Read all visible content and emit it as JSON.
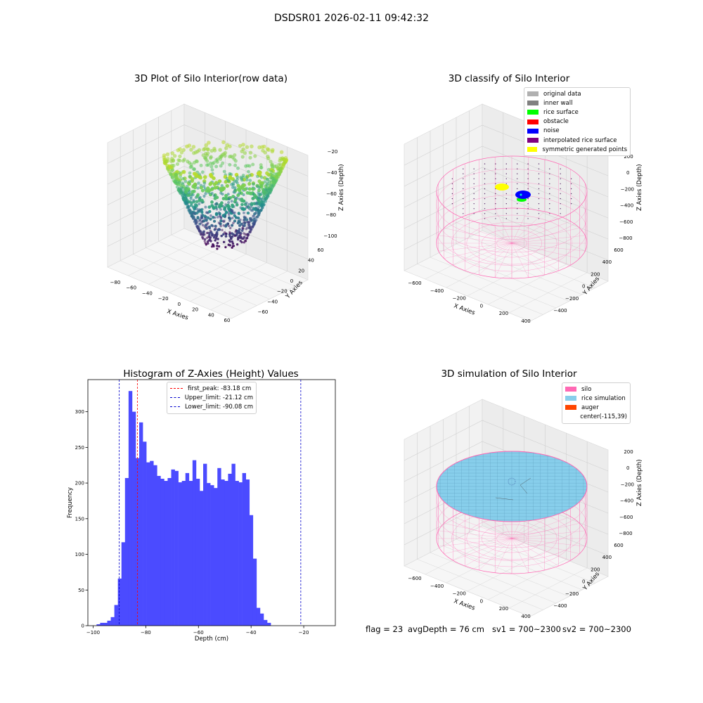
{
  "figure": {
    "suptitle": "DSDSR01 2026-02-11 09:42:32"
  },
  "plot_raw": {
    "title": "3D Plot of Silo Interior(row data)",
    "xlabel": "X Axies",
    "ylabel": "Y Axies",
    "zlabel": "Z Axies (Depth)",
    "xticks": [
      "−80",
      "−60",
      "−40",
      "−20",
      "0",
      "20",
      "40",
      "60"
    ],
    "yticks": [
      "60",
      "40",
      "20",
      "0",
      "−20",
      "−40",
      "−60"
    ],
    "zticks": [
      "−20",
      "−40",
      "−60",
      "−80",
      "−100"
    ]
  },
  "plot_classify": {
    "title": "3D classify of Silo Interior",
    "xlabel": "X Axies",
    "ylabel": "Y Axies",
    "zlabel": "Z Axies (Depth)",
    "xticks": [
      "−600",
      "−400",
      "−200",
      "0",
      "200",
      "400"
    ],
    "yticks": [
      "600",
      "400",
      "200",
      "0",
      "−200",
      "−400"
    ],
    "zticks": [
      "200",
      "0",
      "−200",
      "−400",
      "−600",
      "−800"
    ],
    "legend": [
      {
        "label": "original data",
        "color": "#b0b0b0"
      },
      {
        "label": "inner wall",
        "color": "#808080"
      },
      {
        "label": "rice surface",
        "color": "#00ff00"
      },
      {
        "label": "obstacle",
        "color": "#ff0000"
      },
      {
        "label": "noise",
        "color": "#0000ff"
      },
      {
        "label": "interpolated rice surface",
        "color": "#800080"
      },
      {
        "label": "symmetric generated points",
        "color": "#ffff00"
      }
    ]
  },
  "plot_sim": {
    "title": "3D simulation of Silo Interior",
    "xlabel": "X Axies",
    "ylabel": "Y Axies",
    "zlabel": "Z Axies (Depth)",
    "xticks": [
      "−600",
      "−400",
      "−200",
      "0",
      "200",
      "400"
    ],
    "yticks": [
      "600",
      "400",
      "200",
      "0",
      "−200",
      "−400"
    ],
    "zticks": [
      "200",
      "0",
      "−200",
      "−400",
      "−600",
      "−800"
    ],
    "legend": [
      {
        "label": "silo",
        "color": "#ff69b4"
      },
      {
        "label": "rice simulation",
        "color": "#87ceeb"
      },
      {
        "label": "auger",
        "color": "#ff4500"
      },
      {
        "label": "center(-115,39)",
        "color": ""
      }
    ]
  },
  "chart_data": {
    "type": "bar",
    "title": "Histogram of Z-Axies (Height) Values",
    "xlabel": "Depth (cm)",
    "ylabel": "Frequency",
    "xlim": [
      -102,
      -8
    ],
    "ylim": [
      0,
      345
    ],
    "bin_width": 1.35,
    "bin_start": -98.7,
    "values": [
      2,
      4,
      4,
      7,
      12,
      29,
      66,
      117,
      207,
      329,
      300,
      235,
      285,
      258,
      229,
      231,
      225,
      210,
      206,
      203,
      207,
      219,
      217,
      201,
      203,
      214,
      203,
      232,
      206,
      189,
      227,
      200,
      197,
      193,
      221,
      205,
      203,
      213,
      227,
      203,
      201,
      214,
      205,
      155,
      94,
      25,
      17,
      8,
      4
    ],
    "xticks": [
      -100,
      -80,
      -60,
      -40,
      -20
    ],
    "xtick_labels": [
      "−100",
      "−80",
      "−60",
      "−40",
      "−20"
    ],
    "yticks": [
      0,
      50,
      100,
      150,
      200,
      250,
      300
    ],
    "ytick_labels": [
      "0",
      "50",
      "100",
      "150",
      "200",
      "250",
      "300"
    ],
    "vlines": [
      {
        "x": -83.18,
        "color": "#ff0000",
        "label": "first_peak: -83.18 cm"
      },
      {
        "x": -21.12,
        "color": "#0000cc",
        "label": "Upper_limit: -21.12 cm"
      },
      {
        "x": -90.08,
        "color": "#0000cc",
        "label": "Lower_limit: -90.08 cm"
      }
    ],
    "bar_color": "#4b4bff"
  },
  "footer": {
    "flag": "flag = 23",
    "avg_depth": "avgDepth = 76 cm",
    "sv1": "sv1 = 700~2300",
    "sv2": "sv2 = 700~2300"
  }
}
